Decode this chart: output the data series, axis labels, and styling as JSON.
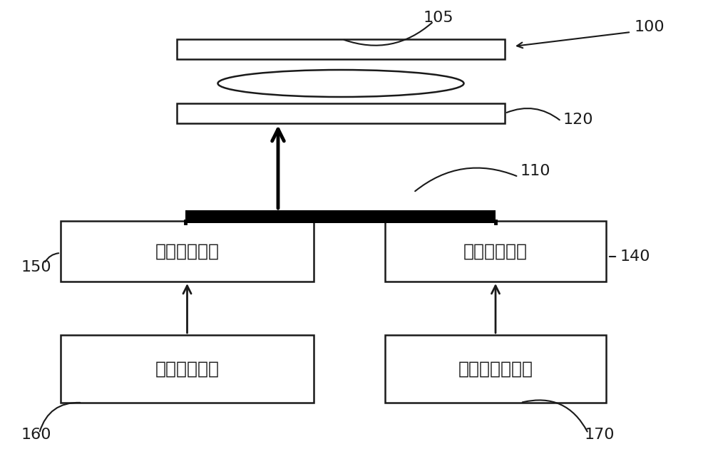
{
  "bg_color": "#ffffff",
  "labels": {
    "box_left_top_text": "阻抗匹配网络",
    "box_right_top_text": "阻抗匹配网络",
    "box_left_bottom_text": "射频源功率源",
    "box_right_bottom_text": "射频偏置功率源"
  },
  "box_color": "#ffffff",
  "box_edge_color": "#1a1a1a",
  "plate_color": "#ffffff",
  "plate_edge_color": "#1a1a1a",
  "arrow_color": "#1a1a1a",
  "text_color": "#1a1a1a",
  "ref_color": "#1a1a1a",
  "font_size": 18,
  "ref_font_size": 14,
  "lw": 1.8
}
